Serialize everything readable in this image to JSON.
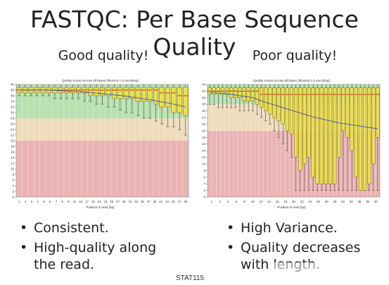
{
  "slide": {
    "title": "FASTQC: Per Base Sequence Quality",
    "footer": "STAT115"
  },
  "left": {
    "heading": "Good quality!",
    "bullets": [
      "Consistent.",
      "High-quality along the read."
    ]
  },
  "right": {
    "heading": "Poor quality!",
    "bullets": [
      "High Variance.",
      "Quality decreases with length."
    ]
  },
  "colors": {
    "good_zone": "#b8e0b0",
    "mid_zone": "#eedcbc",
    "bad_zone": "#eab4b4",
    "box_fill": "#f0e040",
    "median": "#cc0000",
    "mean": "#3344aa"
  },
  "chart_data": [
    {
      "type": "box",
      "title": "Quality scores across all bases (Illumina 1.5 encoding)",
      "xlabel": "Position in read (bp)",
      "ylabel": "",
      "ylim": [
        0,
        40
      ],
      "yticks": [
        0,
        2,
        4,
        6,
        8,
        10,
        12,
        14,
        16,
        18,
        20,
        22,
        24,
        26,
        28,
        30,
        32,
        34,
        36,
        38,
        40
      ],
      "xticks": [
        "1",
        "2",
        "3",
        "4",
        "5",
        "6",
        "7",
        "8",
        "9",
        "11",
        "15",
        "17",
        "19",
        "21",
        "23",
        "25",
        "27",
        "29",
        "31",
        "33",
        "35",
        "37",
        "39",
        "41",
        "43",
        "45",
        "47",
        "49"
      ],
      "zones": [
        [
          0,
          20
        ],
        [
          20,
          28
        ],
        [
          28,
          40
        ]
      ],
      "positions": [
        1,
        2,
        3,
        4,
        5,
        6,
        7,
        8,
        9,
        11,
        13,
        15,
        17,
        19,
        21,
        23,
        25,
        27,
        29,
        31,
        33,
        35,
        37,
        39,
        41,
        43,
        45,
        47,
        49
      ],
      "q1": [
        37,
        37,
        37,
        37,
        37,
        37,
        37,
        37,
        37,
        37,
        37,
        37,
        36,
        36,
        36,
        36,
        35,
        35,
        35,
        35,
        34,
        34,
        34,
        33,
        32,
        32,
        30,
        30,
        29
      ],
      "q3": [
        39,
        39,
        39,
        39,
        39,
        39,
        39,
        39,
        39,
        39,
        39,
        39,
        39,
        39,
        39,
        39,
        39,
        39,
        39,
        39,
        39,
        39,
        39,
        39,
        39,
        39,
        39,
        39,
        39
      ],
      "median": [
        38,
        38,
        38,
        38,
        38,
        38,
        38,
        38,
        38,
        38,
        38,
        38,
        38,
        38,
        38,
        38,
        38,
        38,
        38,
        38,
        38,
        38,
        38,
        38,
        37,
        37,
        37,
        36,
        36
      ],
      "lower": [
        36,
        36,
        36,
        36,
        36,
        36,
        35,
        35,
        35,
        35,
        35,
        34,
        34,
        33,
        33,
        32,
        32,
        31,
        30,
        30,
        29,
        28,
        28,
        27,
        26,
        25,
        25,
        24,
        22
      ],
      "upper": [
        40,
        40,
        40,
        40,
        40,
        40,
        40,
        40,
        40,
        40,
        40,
        40,
        40,
        40,
        40,
        40,
        40,
        40,
        40,
        40,
        40,
        40,
        40,
        40,
        40,
        40,
        40,
        40,
        40
      ],
      "mean": [
        38,
        38,
        38,
        38,
        38,
        38,
        37.9,
        37.8,
        37.7,
        37.6,
        37.5,
        37.3,
        37.1,
        36.9,
        36.7,
        36.5,
        36.3,
        36.1,
        35.8,
        35.5,
        35.2,
        34.9,
        34.6,
        34.2,
        33.8,
        33.4,
        33,
        32.5,
        32
      ]
    },
    {
      "type": "box",
      "title": "Quality scores across all bases (Illumina 1.5 encoding)",
      "xlabel": "Position in read (bp)",
      "ylabel": "",
      "ylim": [
        0,
        34
      ],
      "yticks": [
        0,
        2,
        4,
        6,
        8,
        10,
        12,
        14,
        16,
        18,
        20,
        22,
        24,
        26,
        28,
        30,
        32,
        34
      ],
      "xticks": [
        "1",
        "2",
        "4",
        "6",
        "8",
        "10",
        "12",
        "14",
        "16",
        "18",
        "20",
        "22",
        "24",
        "26",
        "28",
        "30",
        "32",
        "34",
        "36",
        "38",
        "40"
      ],
      "zones": [
        [
          0,
          20
        ],
        [
          20,
          28
        ],
        [
          28,
          34
        ]
      ],
      "positions": [
        1,
        2,
        3,
        4,
        5,
        6,
        7,
        8,
        9,
        10,
        11,
        12,
        13,
        14,
        15,
        16,
        17,
        18,
        19,
        20,
        21,
        22,
        23,
        24,
        25,
        26,
        27,
        28,
        29,
        30,
        31,
        32,
        33,
        34,
        35,
        36,
        37,
        38,
        39,
        40
      ],
      "q1": [
        31,
        31,
        31,
        31,
        31,
        30,
        30,
        30,
        29,
        29,
        29,
        28,
        27,
        26,
        25,
        24,
        23,
        22,
        20,
        19,
        12,
        8,
        10,
        12,
        6,
        4,
        4,
        4,
        4,
        4,
        12,
        20,
        18,
        14,
        6,
        2,
        2,
        4,
        10,
        18
      ],
      "q3": [
        33,
        33,
        33,
        33,
        33,
        33,
        33,
        33,
        33,
        33,
        33,
        33,
        33,
        33,
        33,
        33,
        33,
        33,
        33,
        33,
        33,
        33,
        33,
        33,
        33,
        33,
        33,
        33,
        33,
        33,
        33,
        33,
        33,
        33,
        33,
        33,
        33,
        33,
        33,
        33
      ],
      "median": [
        32,
        32,
        32,
        32,
        32,
        32,
        32,
        32,
        32,
        32,
        32,
        32,
        31,
        31,
        31,
        31,
        31,
        31,
        31,
        31,
        31,
        31,
        31,
        31,
        31,
        31,
        31,
        31,
        31,
        31,
        31,
        31,
        31,
        31,
        31,
        31,
        31,
        31,
        31,
        31
      ],
      "lower": [
        28,
        28,
        27,
        27,
        27,
        27,
        27,
        26,
        26,
        26,
        26,
        25,
        24,
        23,
        22,
        20,
        18,
        16,
        14,
        12,
        2,
        2,
        2,
        2,
        2,
        2,
        2,
        2,
        2,
        2,
        2,
        2,
        2,
        2,
        2,
        2,
        2,
        2,
        2,
        2
      ],
      "upper": [
        34,
        34,
        34,
        34,
        34,
        34,
        34,
        34,
        34,
        34,
        34,
        34,
        34,
        34,
        34,
        34,
        34,
        34,
        34,
        34,
        34,
        34,
        34,
        34,
        34,
        34,
        34,
        34,
        34,
        34,
        34,
        34,
        34,
        34,
        34,
        34,
        34,
        34,
        34,
        34
      ],
      "mean": [
        31.5,
        31.5,
        31.4,
        31.3,
        31.2,
        31,
        30.8,
        30.6,
        30.4,
        30.2,
        30,
        29.5,
        29,
        28.6,
        28.2,
        27.8,
        27.4,
        27,
        26.6,
        26.2,
        25.8,
        25.4,
        25,
        24.6,
        24.2,
        23.9,
        23.6,
        23.3,
        23,
        22.7,
        22.4,
        22.2,
        22,
        21.8,
        21.6,
        21.4,
        21.2,
        21,
        20.8,
        20.6
      ]
    }
  ]
}
